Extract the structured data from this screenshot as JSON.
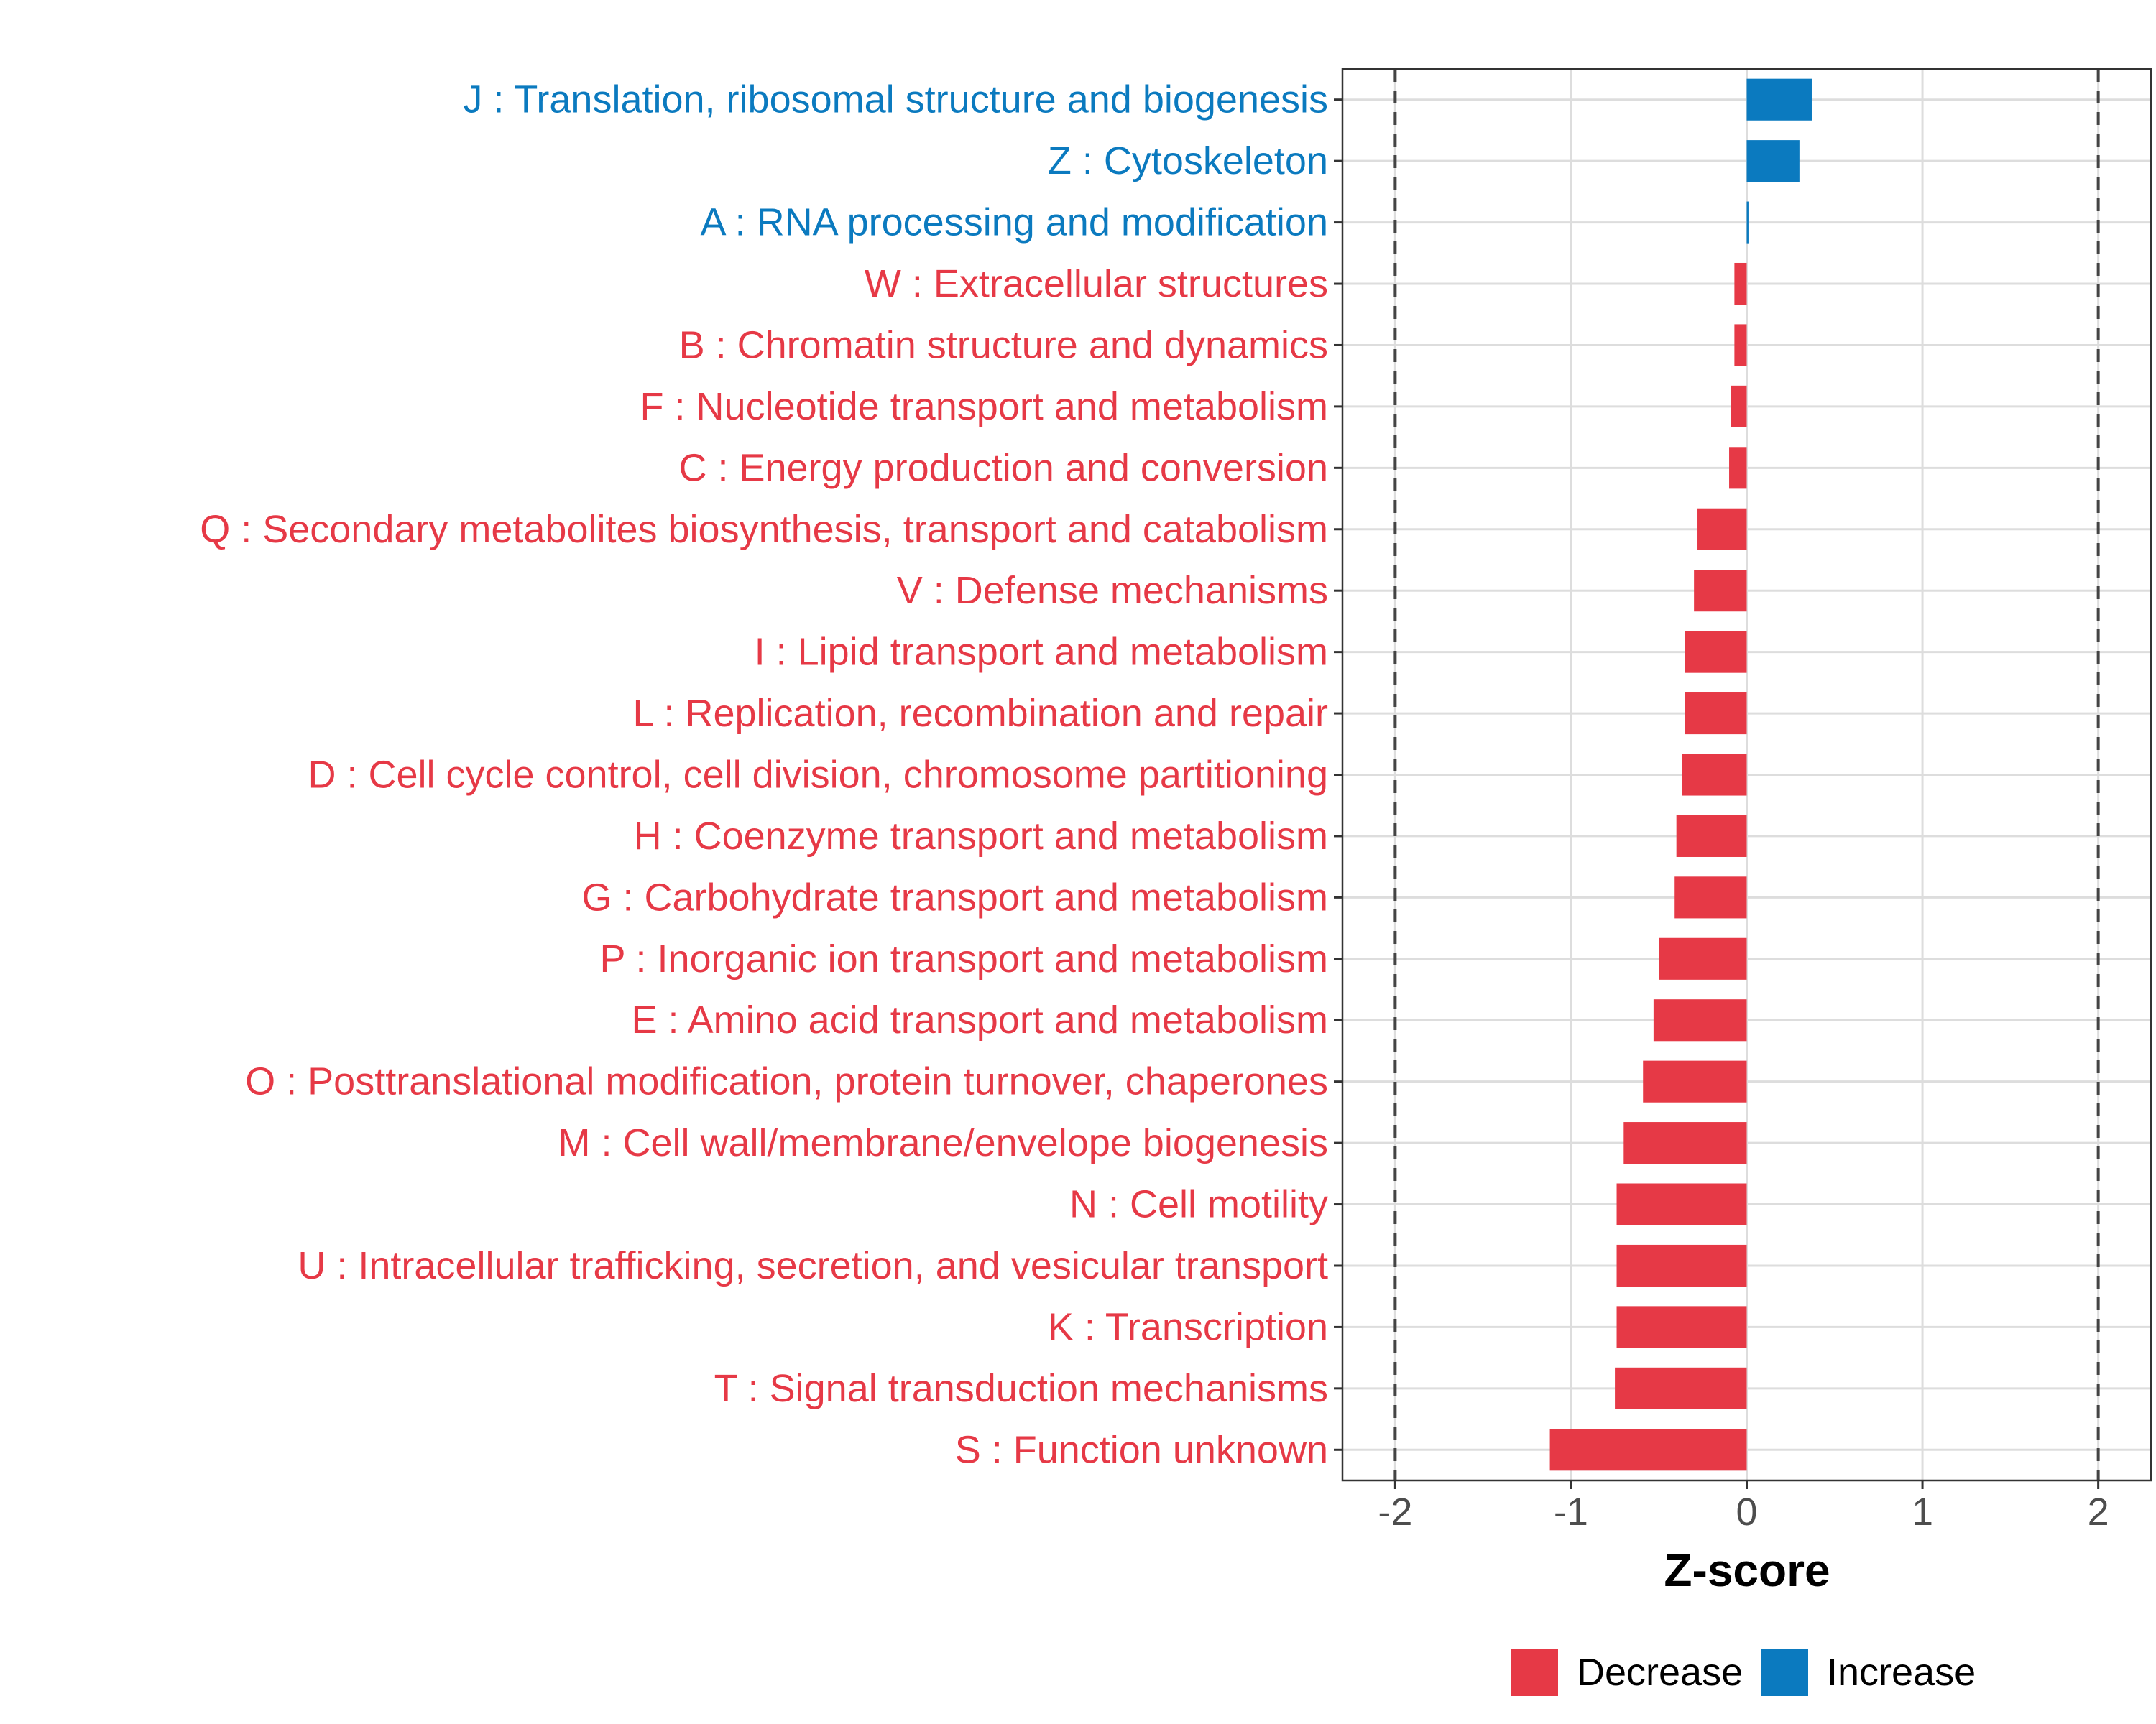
{
  "chart_data": {
    "type": "bar",
    "orientation": "horizontal",
    "title": "",
    "xlabel": "Z-score",
    "ylabel": "",
    "xlim": [
      -2.3,
      2.3
    ],
    "x_ticks": [
      -2,
      -1,
      0,
      1,
      2
    ],
    "x_tick_labels": [
      "-2",
      "-1",
      "0",
      "1",
      "2"
    ],
    "reference_lines": [
      -2,
      2
    ],
    "grid": true,
    "colors": {
      "Decrease": "#e63946",
      "Increase": "#0b7abf"
    },
    "categories": [
      "J : Translation, ribosomal structure and biogenesis",
      "Z : Cytoskeleton",
      "A : RNA processing and modification",
      "W : Extracellular structures",
      "B : Chromatin structure and dynamics",
      "F : Nucleotide transport and metabolism",
      "C : Energy production and conversion",
      "Q : Secondary metabolites biosynthesis, transport and catabolism",
      "V : Defense mechanisms",
      "I : Lipid transport and metabolism",
      "L : Replication, recombination and repair",
      "D : Cell cycle control, cell division, chromosome partitioning",
      "H : Coenzyme transport and metabolism",
      "G : Carbohydrate transport and metabolism",
      "P : Inorganic ion transport and metabolism",
      "E : Amino acid transport and metabolism",
      "O : Posttranslational modification, protein turnover, chaperones",
      "M : Cell wall/membrane/envelope biogenesis",
      "N : Cell motility",
      "U : Intracellular trafficking, secretion, and vesicular transport",
      "K : Transcription",
      "T : Signal transduction mechanisms",
      "S : Function unknown"
    ],
    "values": [
      0.37,
      0.3,
      0.01,
      -0.07,
      -0.07,
      -0.09,
      -0.1,
      -0.28,
      -0.3,
      -0.35,
      -0.35,
      -0.37,
      -0.4,
      -0.41,
      -0.5,
      -0.53,
      -0.59,
      -0.7,
      -0.74,
      -0.74,
      -0.74,
      -0.75,
      -1.12
    ],
    "groups": [
      "Increase",
      "Increase",
      "Increase",
      "Decrease",
      "Decrease",
      "Decrease",
      "Decrease",
      "Decrease",
      "Decrease",
      "Decrease",
      "Decrease",
      "Decrease",
      "Decrease",
      "Decrease",
      "Decrease",
      "Decrease",
      "Decrease",
      "Decrease",
      "Decrease",
      "Decrease",
      "Decrease",
      "Decrease",
      "Decrease"
    ],
    "legend": {
      "position": "bottom",
      "items": [
        {
          "label": "Decrease",
          "color": "#e63946"
        },
        {
          "label": "Increase",
          "color": "#0b7abf"
        }
      ]
    }
  }
}
